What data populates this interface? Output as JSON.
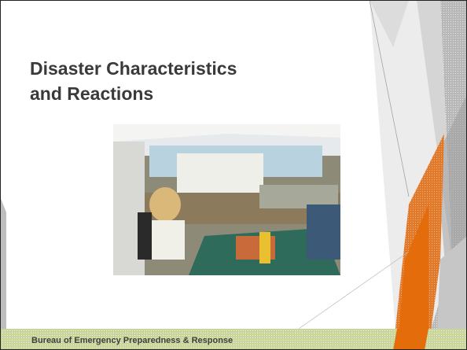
{
  "slide": {
    "title_lines": [
      "Disaster Characteristics",
      "and Reactions"
    ],
    "footer": "Bureau of Emergency Preparedness & Response"
  }
}
